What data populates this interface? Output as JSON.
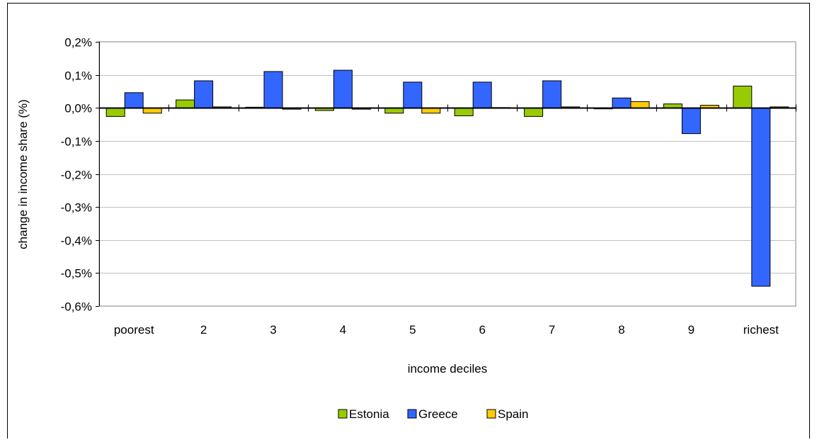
{
  "chart_data": {
    "type": "bar",
    "categories": [
      "poorest",
      "2",
      "3",
      "4",
      "5",
      "6",
      "7",
      "8",
      "9",
      "richest"
    ],
    "series": [
      {
        "name": "Estonia",
        "color": "#99cc00",
        "values": [
          -0.026,
          0.024,
          0.002,
          -0.008,
          -0.016,
          -0.024,
          -0.026,
          -0.003,
          0.012,
          0.066
        ]
      },
      {
        "name": "Greece",
        "color": "#3366ff",
        "values": [
          0.046,
          0.082,
          0.11,
          0.114,
          0.078,
          0.078,
          0.082,
          0.03,
          -0.078,
          -0.54
        ]
      },
      {
        "name": "Spain",
        "color": "#ffcc00",
        "values": [
          -0.016,
          0.003,
          -0.004,
          -0.004,
          -0.016,
          0.001,
          0.003,
          0.019,
          0.008,
          0.003
        ]
      }
    ],
    "xlabel": "income deciles",
    "ylabel": "change in income share (%)",
    "ylim": [
      -0.6,
      0.2
    ],
    "y_ticks": [
      0.2,
      0.1,
      0.0,
      -0.1,
      -0.2,
      -0.3,
      -0.4,
      -0.5,
      -0.6
    ],
    "y_tick_labels": [
      "0,2%",
      "0,1%",
      "0,0%",
      "-0,1%",
      "-0,2%",
      "-0,3%",
      "-0,4%",
      "-0,5%",
      "-0,6%"
    ],
    "grid": true,
    "legend_position": "bottom"
  }
}
